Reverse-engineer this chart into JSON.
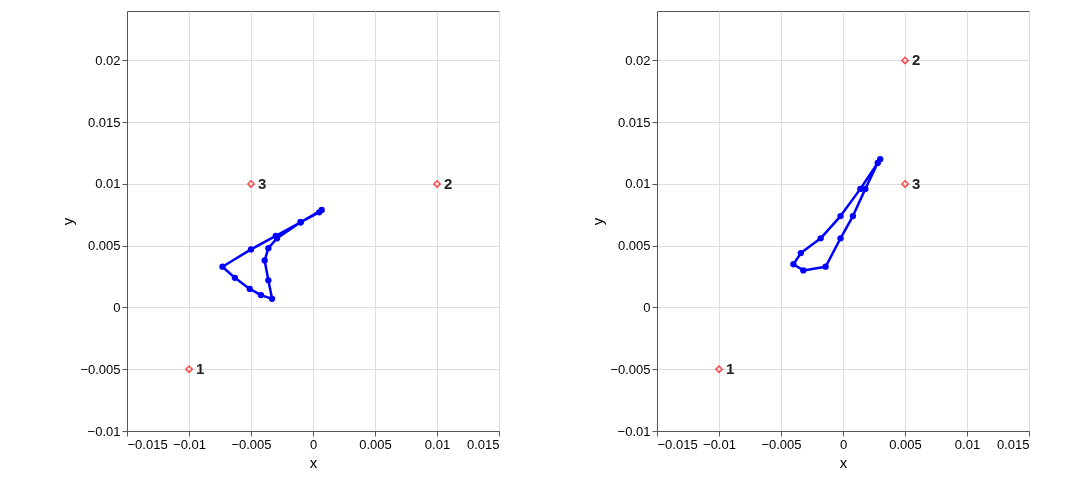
{
  "chart_data": [
    {
      "type": "line",
      "xlabel": "x",
      "ylabel": "y",
      "xlim": [
        -0.015,
        0.015
      ],
      "ylim": [
        -0.01,
        0.024
      ],
      "xticks": [
        -0.015,
        -0.01,
        -0.005,
        0,
        0.005,
        0.01,
        0.015
      ],
      "yticks": [
        -0.01,
        -0.005,
        0,
        0.005,
        0.01,
        0.015,
        0.02
      ],
      "grid": true,
      "series": [
        {
          "marker": "circle",
          "color": "#0000ff",
          "x": [
            0.0007,
            -0.001,
            -0.003,
            -0.005,
            -0.0073,
            -0.0063,
            -0.0051,
            -0.0042,
            -0.0033,
            -0.0036,
            -0.0039,
            -0.0036,
            -0.0029,
            -0.001,
            0.0005
          ],
          "values": [
            0.0079,
            0.0069,
            0.0058,
            0.0047,
            0.0033,
            0.0024,
            0.0015,
            0.001,
            0.0007,
            0.0022,
            0.0038,
            0.0048,
            0.0056,
            0.0069,
            0.0077
          ]
        },
        {
          "type": "scatter",
          "marker": "diamond",
          "color": "#ff0000",
          "x": [
            -0.01,
            0.01,
            -0.005
          ],
          "values": [
            -0.005,
            0.01,
            0.01
          ]
        }
      ],
      "annotations": [
        {
          "text": "1",
          "x": -0.01,
          "y": -0.005
        },
        {
          "text": "2",
          "x": 0.01,
          "y": 0.01
        },
        {
          "text": "3",
          "x": -0.005,
          "y": 0.01
        }
      ]
    },
    {
      "type": "line",
      "xlabel": "x",
      "ylabel": "y",
      "xlim": [
        -0.015,
        0.015
      ],
      "ylim": [
        -0.01,
        0.024
      ],
      "xticks": [
        -0.015,
        -0.01,
        -0.005,
        0,
        0.005,
        0.01,
        0.015
      ],
      "yticks": [
        -0.01,
        -0.005,
        0,
        0.005,
        0.01,
        0.015,
        0.02
      ],
      "grid": true,
      "series": [
        {
          "marker": "circle",
          "color": "#0000ff",
          "x": [
            0.003,
            0.0014,
            -0.0002,
            -0.0018,
            -0.0034,
            -0.004,
            -0.0032,
            -0.0014,
            -0.0002,
            0.0008,
            0.0018,
            0.0028
          ],
          "values": [
            0.012,
            0.0096,
            0.0074,
            0.0056,
            0.0044,
            0.0035,
            0.003,
            0.0033,
            0.0056,
            0.0074,
            0.0096,
            0.0117
          ]
        },
        {
          "type": "scatter",
          "marker": "diamond",
          "color": "#ff0000",
          "x": [
            -0.01,
            0.005,
            0.005
          ],
          "values": [
            -0.005,
            0.02,
            0.01
          ]
        }
      ],
      "annotations": [
        {
          "text": "1",
          "x": -0.01,
          "y": -0.005
        },
        {
          "text": "2",
          "x": 0.005,
          "y": 0.02
        },
        {
          "text": "3",
          "x": 0.005,
          "y": 0.01
        }
      ]
    }
  ]
}
